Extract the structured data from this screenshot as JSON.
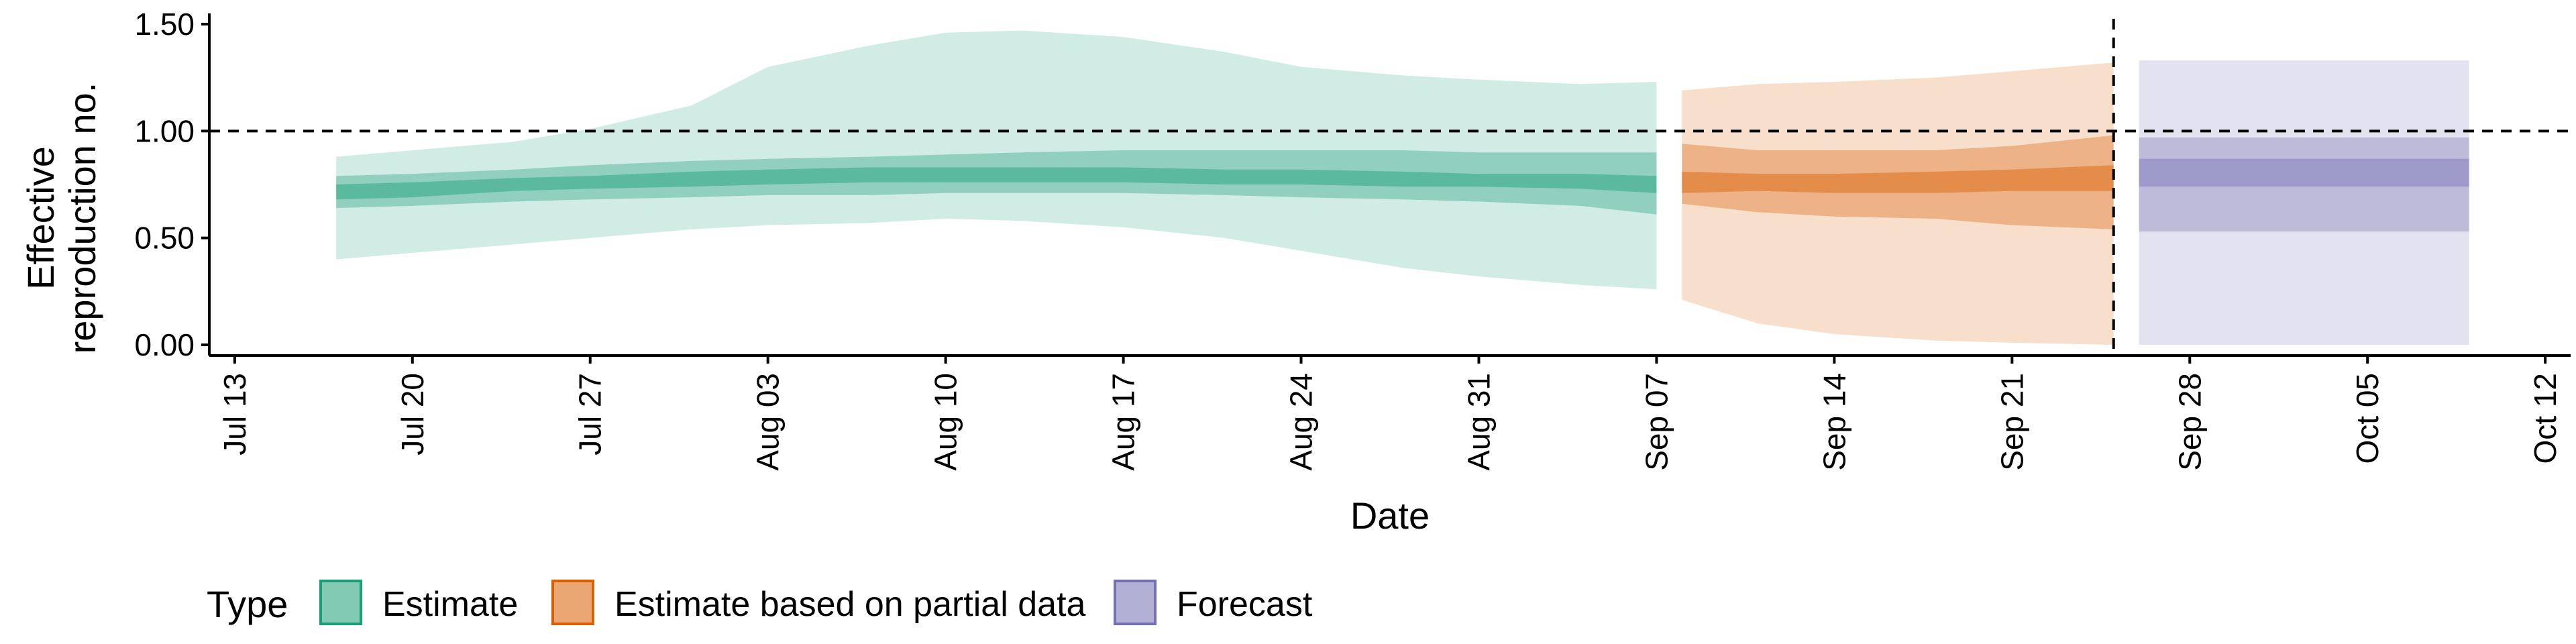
{
  "chart_data": {
    "type": "area",
    "xlabel": "Date",
    "ylabel": [
      "Effective",
      "reproduction no."
    ],
    "xlim": [
      "2020-07-12",
      "2020-10-13"
    ],
    "ylim": [
      -0.05,
      1.55
    ],
    "x_ticks": [
      "2020-07-13",
      "2020-07-20",
      "2020-07-27",
      "2020-08-03",
      "2020-08-10",
      "2020-08-17",
      "2020-08-24",
      "2020-08-31",
      "2020-09-07",
      "2020-09-14",
      "2020-09-21",
      "2020-09-28",
      "2020-10-05",
      "2020-10-12"
    ],
    "x_tick_labels": [
      "Jul 13",
      "Jul 20",
      "Jul 27",
      "Aug 03",
      "Aug 10",
      "Aug 17",
      "Aug 24",
      "Aug 31",
      "Sep 07",
      "Sep 14",
      "Sep 21",
      "Sep 28",
      "Oct 05",
      "Oct 12"
    ],
    "y_ticks": [
      0,
      0.5,
      1.0,
      1.5
    ],
    "y_tick_labels": [
      "0.00",
      "0.50",
      "1.00",
      "1.50"
    ],
    "reference_line": {
      "y": 1.0,
      "style": "dashed"
    },
    "vertical_line": {
      "x": "2020-09-25",
      "style": "dashed"
    },
    "grid": false,
    "legend": {
      "title": "Type",
      "position": "bottom-left",
      "entries": [
        {
          "label": "Estimate",
          "color": "#1b9e77"
        },
        {
          "label": "Estimate based on partial data",
          "color": "#d95f02"
        },
        {
          "label": "Forecast",
          "color": "#7570b3"
        }
      ]
    },
    "series": [
      {
        "name": "Estimate",
        "color": "#1b9e77",
        "x": [
          "2020-07-17",
          "2020-07-20",
          "2020-07-24",
          "2020-07-27",
          "2020-07-31",
          "2020-08-03",
          "2020-08-07",
          "2020-08-10",
          "2020-08-13",
          "2020-08-17",
          "2020-08-21",
          "2020-08-24",
          "2020-08-28",
          "2020-08-31",
          "2020-09-04",
          "2020-09-07"
        ],
        "lower90": [
          0.4,
          0.43,
          0.47,
          0.5,
          0.54,
          0.56,
          0.57,
          0.59,
          0.58,
          0.55,
          0.5,
          0.44,
          0.36,
          0.32,
          0.28,
          0.26
        ],
        "lower50": [
          0.64,
          0.65,
          0.67,
          0.68,
          0.69,
          0.7,
          0.7,
          0.71,
          0.71,
          0.71,
          0.7,
          0.69,
          0.68,
          0.67,
          0.65,
          0.61
        ],
        "lower20": [
          0.68,
          0.69,
          0.72,
          0.73,
          0.74,
          0.75,
          0.76,
          0.76,
          0.76,
          0.76,
          0.75,
          0.75,
          0.74,
          0.74,
          0.73,
          0.71
        ],
        "upper20": [
          0.75,
          0.76,
          0.78,
          0.79,
          0.81,
          0.82,
          0.83,
          0.83,
          0.83,
          0.83,
          0.82,
          0.82,
          0.81,
          0.8,
          0.8,
          0.79
        ],
        "upper50": [
          0.79,
          0.8,
          0.82,
          0.84,
          0.86,
          0.87,
          0.88,
          0.89,
          0.9,
          0.91,
          0.91,
          0.91,
          0.91,
          0.9,
          0.9,
          0.9
        ],
        "upper90": [
          0.88,
          0.91,
          0.95,
          1.01,
          1.12,
          1.3,
          1.4,
          1.46,
          1.47,
          1.44,
          1.37,
          1.3,
          1.26,
          1.24,
          1.22,
          1.23
        ]
      },
      {
        "name": "Estimate based on partial data",
        "color": "#d95f02",
        "x": [
          "2020-09-08",
          "2020-09-11",
          "2020-09-14",
          "2020-09-18",
          "2020-09-21",
          "2020-09-25"
        ],
        "lower90": [
          0.21,
          0.1,
          0.05,
          0.02,
          0.01,
          0.0
        ],
        "lower50": [
          0.66,
          0.62,
          0.6,
          0.59,
          0.56,
          0.54
        ],
        "lower20": [
          0.71,
          0.72,
          0.71,
          0.71,
          0.72,
          0.72
        ],
        "upper20": [
          0.81,
          0.8,
          0.8,
          0.81,
          0.82,
          0.84
        ],
        "upper50": [
          0.94,
          0.91,
          0.91,
          0.91,
          0.93,
          0.98
        ],
        "upper90": [
          1.19,
          1.22,
          1.23,
          1.25,
          1.28,
          1.32
        ]
      },
      {
        "name": "Forecast",
        "color": "#7570b3",
        "x": [
          "2020-09-26",
          "2020-10-09"
        ],
        "lower90": [
          0.0,
          0.0
        ],
        "lower50": [
          0.53,
          0.53
        ],
        "lower20": [
          0.74,
          0.74
        ],
        "upper20": [
          0.87,
          0.87
        ],
        "upper50": [
          0.97,
          0.97
        ],
        "upper90": [
          1.33,
          1.33
        ]
      }
    ]
  }
}
